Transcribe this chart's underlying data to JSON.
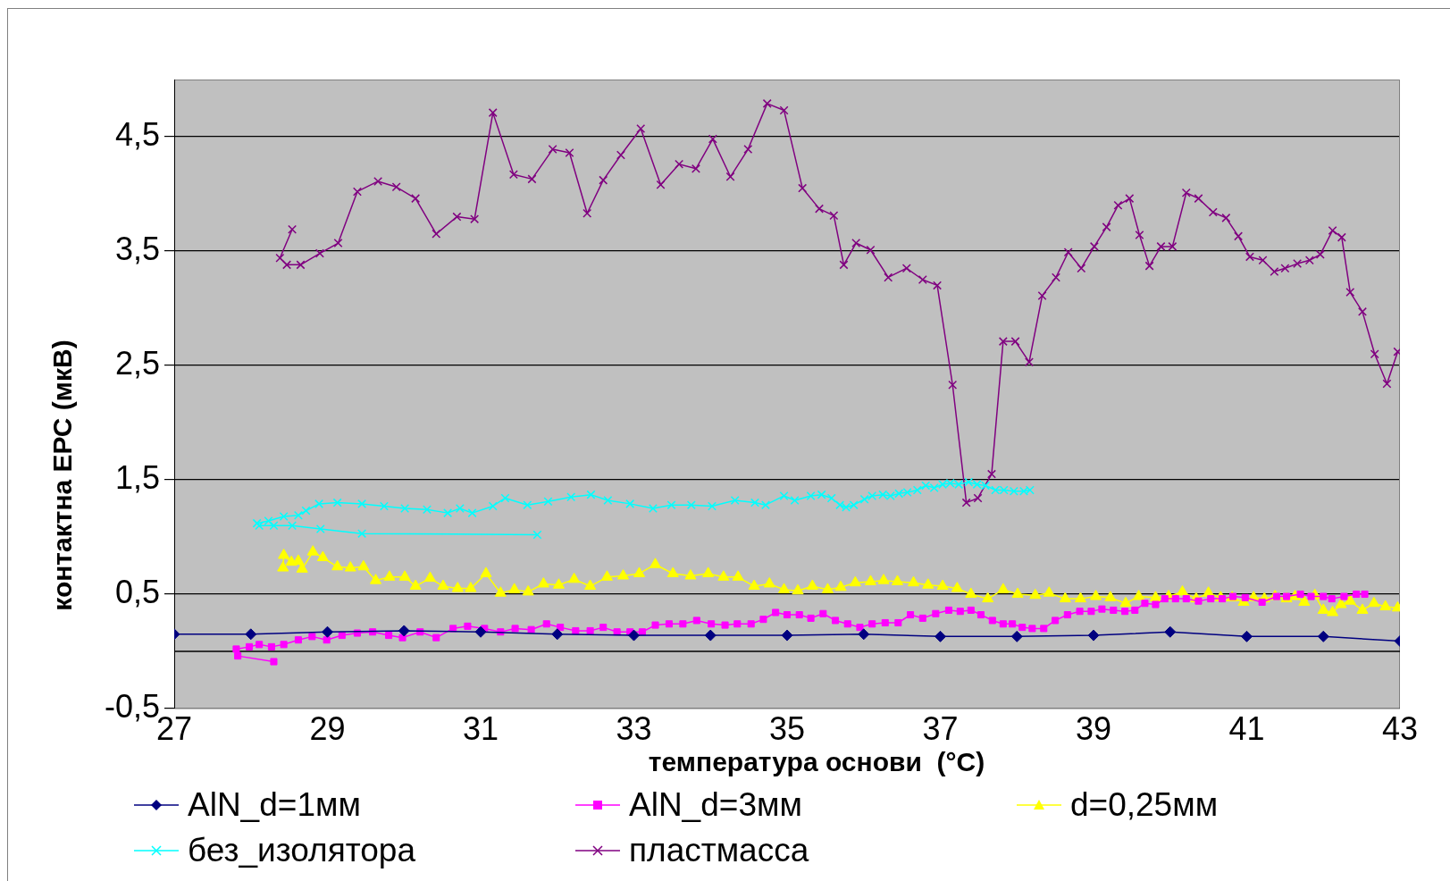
{
  "chart_data": {
    "type": "line",
    "xlabel": "температура основи  (°C)",
    "ylabel": "контактна ЕРС (мкВ)",
    "xlim": [
      27,
      43
    ],
    "xticks": [
      27,
      29,
      31,
      33,
      35,
      37,
      39,
      41,
      43
    ],
    "ylim": [
      -0.5,
      5
    ],
    "yticks": [
      {
        "value": -0.5,
        "label": "-0,5"
      },
      {
        "value": 0.5,
        "label": "0,5"
      },
      {
        "value": 1.5,
        "label": "1,5"
      },
      {
        "value": 2.5,
        "label": "2,5"
      },
      {
        "value": 3.5,
        "label": "3,5"
      },
      {
        "value": 4.5,
        "label": "4,5"
      }
    ],
    "grid": "y",
    "legend": "bottom",
    "line_style": "solid",
    "ref_lines": [
      {
        "axis": "y",
        "value": 0,
        "color": "#000000"
      }
    ],
    "series": [
      {
        "name": "AlN_d=1мм",
        "color": "#000080",
        "marker": "diamond",
        "x": [
          27,
          28,
          29,
          30,
          31,
          32,
          33,
          34,
          35,
          36,
          37,
          38,
          39,
          40,
          41,
          42,
          43
        ],
        "values": [
          0.15,
          0.15,
          0.17,
          0.18,
          0.17,
          0.15,
          0.14,
          0.14,
          0.14,
          0.15,
          0.13,
          0.13,
          0.14,
          0.17,
          0.13,
          0.13,
          0.09
        ]
      },
      {
        "name": "AlN_d=3мм",
        "color": "#ff00ff",
        "marker": "square",
        "x": [
          28.3,
          27.83,
          27.81,
          27.98,
          28.11,
          28.27,
          28.43,
          28.62,
          28.8,
          28.99,
          29.19,
          29.39,
          29.59,
          29.8,
          29.98,
          30.21,
          30.42,
          30.64,
          30.83,
          31.05,
          31.26,
          31.45,
          31.66,
          31.86,
          32.04,
          32.24,
          32.43,
          32.6,
          32.78,
          32.95,
          33.11,
          33.28,
          33.46,
          33.64,
          33.82,
          34.01,
          34.19,
          34.35,
          34.53,
          34.69,
          34.85,
          35.0,
          35.16,
          35.31,
          35.47,
          35.63,
          35.79,
          35.95,
          36.11,
          36.28,
          36.45,
          36.61,
          36.77,
          36.94,
          37.11,
          37.26,
          37.4,
          37.53,
          37.68,
          37.82,
          37.94,
          38.07,
          38.2,
          38.35,
          38.5,
          38.66,
          38.82,
          38.97,
          39.11,
          39.26,
          39.41,
          39.54,
          39.67,
          39.81,
          39.93,
          40.07,
          40.21,
          40.37,
          40.53,
          40.68,
          40.82,
          40.98,
          41.2,
          41.39,
          41.52,
          41.7,
          41.84,
          42.0,
          42.11,
          42.27,
          42.43,
          42.54
        ],
        "values": [
          -0.09,
          -0.04,
          0.02,
          0.04,
          0.06,
          0.04,
          0.06,
          0.1,
          0.13,
          0.1,
          0.14,
          0.16,
          0.17,
          0.14,
          0.12,
          0.17,
          0.12,
          0.2,
          0.22,
          0.2,
          0.17,
          0.2,
          0.19,
          0.24,
          0.21,
          0.18,
          0.18,
          0.21,
          0.17,
          0.17,
          0.17,
          0.23,
          0.24,
          0.24,
          0.27,
          0.24,
          0.23,
          0.24,
          0.24,
          0.28,
          0.34,
          0.32,
          0.32,
          0.29,
          0.33,
          0.27,
          0.24,
          0.21,
          0.24,
          0.25,
          0.25,
          0.32,
          0.29,
          0.33,
          0.36,
          0.35,
          0.36,
          0.32,
          0.27,
          0.24,
          0.24,
          0.21,
          0.2,
          0.2,
          0.27,
          0.32,
          0.35,
          0.35,
          0.37,
          0.36,
          0.35,
          0.36,
          0.42,
          0.41,
          0.46,
          0.46,
          0.46,
          0.44,
          0.46,
          0.46,
          0.48,
          0.47,
          0.43,
          0.48,
          0.48,
          0.5,
          0.48,
          0.48,
          0.46,
          0.48,
          0.5,
          0.5
        ]
      },
      {
        "name": "d=0,25мм",
        "color": "#ffff00",
        "marker": "triangle",
        "x": [
          28.42,
          28.43,
          28.53,
          28.62,
          28.67,
          28.81,
          28.94,
          29.13,
          29.3,
          29.47,
          29.63,
          29.81,
          30.01,
          30.15,
          30.34,
          30.51,
          30.7,
          30.87,
          31.07,
          31.26,
          31.44,
          31.62,
          31.82,
          32.02,
          32.22,
          32.43,
          32.65,
          32.86,
          33.07,
          33.28,
          33.51,
          33.74,
          33.97,
          34.17,
          34.36,
          34.57,
          34.77,
          34.96,
          35.14,
          35.33,
          35.53,
          35.7,
          35.89,
          36.09,
          36.26,
          36.44,
          36.65,
          36.84,
          37.03,
          37.22,
          37.4,
          37.62,
          37.82,
          38.01,
          38.24,
          38.42,
          38.63,
          38.83,
          39.03,
          39.22,
          39.42,
          39.59,
          39.81,
          39.98,
          40.16,
          40.34,
          40.5,
          40.66,
          40.81,
          40.96,
          41.09,
          41.23,
          41.37,
          41.52,
          41.63,
          41.75,
          41.89,
          42.0,
          42.12,
          42.23,
          42.35,
          42.51,
          42.66,
          42.81,
          42.97
        ],
        "values": [
          0.73,
          0.84,
          0.78,
          0.79,
          0.72,
          0.87,
          0.82,
          0.74,
          0.73,
          0.74,
          0.62,
          0.65,
          0.65,
          0.57,
          0.64,
          0.57,
          0.55,
          0.55,
          0.68,
          0.51,
          0.54,
          0.52,
          0.59,
          0.58,
          0.63,
          0.57,
          0.65,
          0.66,
          0.68,
          0.76,
          0.68,
          0.66,
          0.68,
          0.65,
          0.65,
          0.57,
          0.59,
          0.54,
          0.53,
          0.57,
          0.54,
          0.56,
          0.6,
          0.61,
          0.62,
          0.61,
          0.6,
          0.58,
          0.57,
          0.55,
          0.5,
          0.46,
          0.54,
          0.5,
          0.49,
          0.51,
          0.46,
          0.46,
          0.48,
          0.47,
          0.42,
          0.48,
          0.47,
          0.48,
          0.52,
          0.46,
          0.51,
          0.47,
          0.47,
          0.43,
          0.47,
          0.46,
          0.48,
          0.46,
          0.48,
          0.43,
          0.49,
          0.36,
          0.34,
          0.41,
          0.44,
          0.36,
          0.42,
          0.39,
          0.38
        ]
      },
      {
        "name": "без_изолятора",
        "color": "#00ffff",
        "marker": "cross",
        "x": [
          31.74,
          29.45,
          28.91,
          28.54,
          28.3,
          28.11,
          28.08,
          28.23,
          28.43,
          28.62,
          28.72,
          28.89,
          29.13,
          29.45,
          29.74,
          30.01,
          30.3,
          30.57,
          30.73,
          30.89,
          31.16,
          31.32,
          31.61,
          31.88,
          32.18,
          32.44,
          32.66,
          32.95,
          33.25,
          33.49,
          33.75,
          34.02,
          34.32,
          34.58,
          34.72,
          34.96,
          35.1,
          35.31,
          35.45,
          35.58,
          35.69,
          35.77,
          35.87,
          36.01,
          36.11,
          36.25,
          36.35,
          36.46,
          36.57,
          36.7,
          36.81,
          36.92,
          37.03,
          37.13,
          37.24,
          37.37,
          37.48,
          37.59,
          37.72,
          37.83,
          37.96,
          38.09,
          38.17
        ],
        "values": [
          1.02,
          1.03,
          1.07,
          1.1,
          1.1,
          1.1,
          1.12,
          1.14,
          1.18,
          1.19,
          1.23,
          1.29,
          1.3,
          1.29,
          1.27,
          1.25,
          1.24,
          1.21,
          1.25,
          1.21,
          1.27,
          1.34,
          1.28,
          1.31,
          1.35,
          1.37,
          1.32,
          1.29,
          1.25,
          1.28,
          1.28,
          1.27,
          1.32,
          1.3,
          1.28,
          1.36,
          1.32,
          1.36,
          1.37,
          1.34,
          1.28,
          1.26,
          1.28,
          1.33,
          1.36,
          1.37,
          1.36,
          1.38,
          1.39,
          1.41,
          1.45,
          1.43,
          1.46,
          1.47,
          1.46,
          1.48,
          1.46,
          1.45,
          1.41,
          1.41,
          1.4,
          1.4,
          1.41
        ]
      },
      {
        "name": "пластмасса",
        "color": "#800080",
        "marker": "cross",
        "x": [
          28.54,
          28.38,
          28.47,
          28.65,
          28.9,
          29.14,
          29.39,
          29.66,
          29.9,
          30.15,
          30.42,
          30.69,
          30.92,
          31.16,
          31.43,
          31.67,
          31.94,
          32.16,
          32.39,
          32.6,
          32.83,
          33.09,
          33.35,
          33.59,
          33.81,
          34.03,
          34.26,
          34.49,
          34.74,
          34.96,
          35.2,
          35.42,
          35.61,
          35.74,
          35.9,
          36.09,
          36.32,
          36.56,
          36.77,
          36.96,
          37.16,
          37.34,
          37.49,
          37.67,
          37.82,
          37.98,
          38.16,
          38.33,
          38.51,
          38.67,
          38.84,
          39.01,
          39.17,
          39.32,
          39.47,
          39.6,
          39.73,
          39.88,
          40.03,
          40.21,
          40.37,
          40.56,
          40.73,
          40.89,
          41.04,
          41.21,
          41.36,
          41.5,
          41.66,
          41.82,
          41.96,
          42.12,
          42.24,
          42.35,
          42.51,
          42.67,
          42.83,
          42.97
        ],
        "values": [
          3.69,
          3.44,
          3.38,
          3.38,
          3.48,
          3.57,
          4.02,
          4.11,
          4.06,
          3.96,
          3.65,
          3.8,
          3.78,
          4.71,
          4.17,
          4.13,
          4.39,
          4.36,
          3.83,
          4.12,
          4.34,
          4.57,
          4.08,
          4.26,
          4.22,
          4.48,
          4.15,
          4.39,
          4.79,
          4.73,
          4.05,
          3.87,
          3.81,
          3.38,
          3.57,
          3.51,
          3.27,
          3.35,
          3.25,
          3.2,
          2.33,
          1.3,
          1.34,
          1.55,
          2.71,
          2.71,
          2.53,
          3.11,
          3.27,
          3.49,
          3.35,
          3.54,
          3.71,
          3.9,
          3.96,
          3.64,
          3.37,
          3.54,
          3.54,
          4.01,
          3.96,
          3.84,
          3.79,
          3.63,
          3.45,
          3.42,
          3.32,
          3.35,
          3.39,
          3.42,
          3.47,
          3.68,
          3.62,
          3.14,
          2.97,
          2.6,
          2.34,
          2.62
        ]
      }
    ]
  }
}
